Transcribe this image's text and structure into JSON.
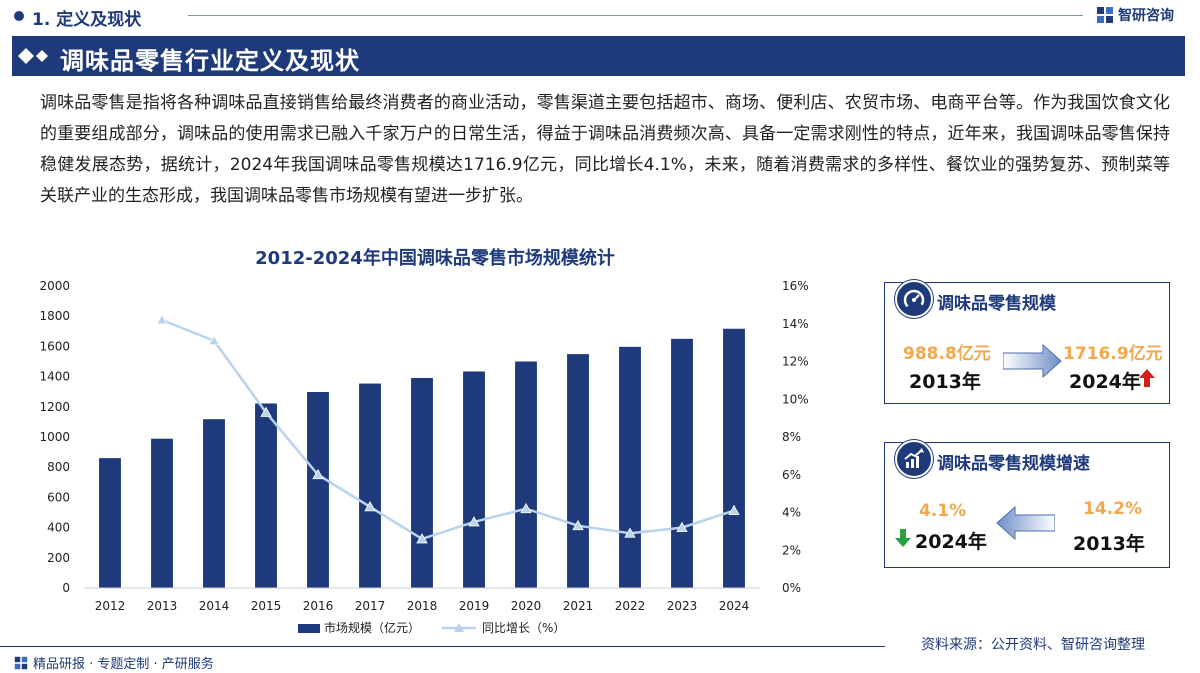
{
  "header": {
    "section_title": "1. 定义及现状",
    "brand_name": "智研咨询"
  },
  "banner": {
    "title": "调味品零售行业定义及现状"
  },
  "intro": {
    "paragraph": "调味品零售是指将各种调味品直接销售给最终消费者的商业活动，零售渠道主要包括超市、商场、便利店、农贸市场、电商平台等。作为我国饮食文化的重要组成部分，调味品的使用需求已融入千家万户的日常生活，得益于调味品消费频次高、具备一定需求刚性的特点，近年来，我国调味品零售保持稳健发展态势，据统计，2024年我国调味品零售规模达1716.9亿元，同比增长4.1%，未来，随着消费需求的多样性、餐饮业的强势复苏、预制菜等关联产业的生态形成，我国调味品零售市场规模有望进一步扩张。"
  },
  "chart_data": {
    "type": "bar",
    "title": "2012-2024年中国调味品零售市场规模统计",
    "categories": [
      "2012",
      "2013",
      "2014",
      "2015",
      "2016",
      "2017",
      "2018",
      "2019",
      "2020",
      "2021",
      "2022",
      "2023",
      "2024"
    ],
    "series": [
      {
        "name": "市场规模（亿元）",
        "type": "bar",
        "axis": "left",
        "color": "#1f3a7a",
        "values": [
          860,
          988.8,
          1118,
          1222,
          1298,
          1354,
          1391,
          1434,
          1500,
          1549,
          1597,
          1650,
          1716.9
        ]
      },
      {
        "name": "同比增长（%）",
        "type": "line",
        "axis": "right",
        "color": "#b9d2ee",
        "values": [
          null,
          14.2,
          13.1,
          9.3,
          6.0,
          4.3,
          2.6,
          3.5,
          4.2,
          3.3,
          2.9,
          3.2,
          4.1
        ]
      }
    ],
    "ylim_left": [
      0,
      2000
    ],
    "yticks_left": [
      "0",
      "200",
      "400",
      "600",
      "800",
      "1000",
      "1200",
      "1400",
      "1600",
      "1800",
      "2000"
    ],
    "ylim_right": [
      0,
      16
    ],
    "yticks_right": [
      "0%",
      "2%",
      "4%",
      "6%",
      "8%",
      "10%",
      "12%",
      "14%",
      "16%"
    ],
    "grid": false,
    "legend_position": "bottom"
  },
  "card_scale": {
    "title": "调味品零售规模",
    "from_value": "988.8亿元",
    "from_year": "2013年",
    "to_value": "1716.9亿元",
    "to_year": "2024年",
    "icon": "gauge-icon",
    "trend_icon": "arrow-up-icon",
    "trend_color": "#d0201d"
  },
  "card_growth": {
    "title": "调味品零售规模增速",
    "left_value": "4.1%",
    "left_year": "2024年",
    "right_value": "14.2%",
    "right_year": "2013年",
    "icon": "growth-chart-icon",
    "trend_icon": "arrow-down-icon",
    "trend_color": "#27a243"
  },
  "footer": {
    "tagline": "精品研报 · 专题定制 · 产研服务",
    "source": "资料来源：公开资料、智研咨询整理"
  },
  "colors": {
    "primary": "#1f3a7a",
    "accent_orange": "#f2a84d",
    "line_light": "#b9d2ee"
  }
}
